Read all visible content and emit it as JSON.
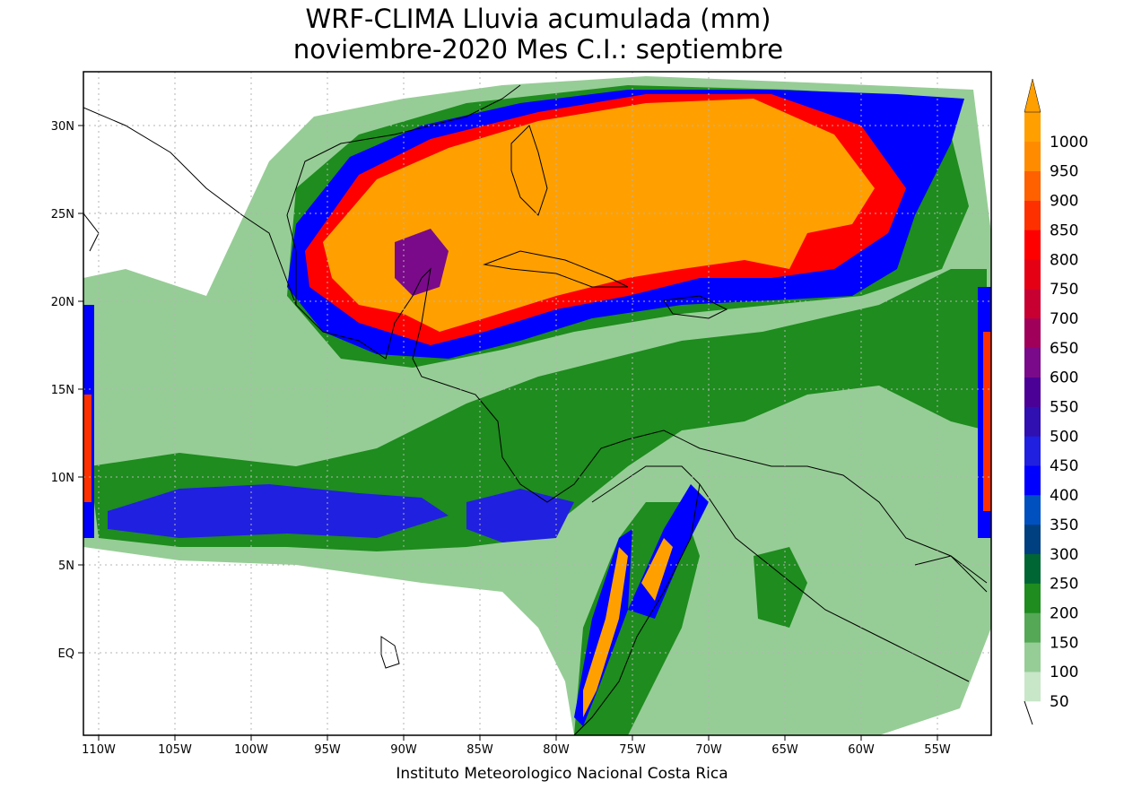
{
  "title": {
    "line1": "WRF-CLIMA Lluvia acumulada (mm)",
    "line2": "noviembre-2020 Mes C.I.: septiembre"
  },
  "footer": "Instituto Meteorologico Nacional Costa Rica",
  "lon_labels": [
    "110W",
    "105W",
    "100W",
    "95W",
    "90W",
    "85W",
    "80W",
    "75W",
    "70W",
    "65W",
    "60W",
    "55W"
  ],
  "lat_labels": [
    "30N",
    "25N",
    "20N",
    "15N",
    "10N",
    "5N",
    "EQ"
  ],
  "legend": {
    "labels": [
      "50",
      "100",
      "150",
      "200",
      "250",
      "300",
      "350",
      "400",
      "450",
      "500",
      "550",
      "600",
      "650",
      "700",
      "750",
      "800",
      "850",
      "900",
      "950",
      "1000"
    ],
    "colors": [
      "#c8e6c8",
      "#96cd96",
      "#55a855",
      "#1e8c1e",
      "#006633",
      "#004080",
      "#0050c0",
      "#0000ff",
      "#2020e0",
      "#3010b0",
      "#4b0096",
      "#7a0a8a",
      "#a0005a",
      "#c80032",
      "#e60014",
      "#ff0000",
      "#ff3000",
      "#ff6000",
      "#ff8c00",
      "#ffa000"
    ]
  },
  "colors": {
    "heavy": "#ffa000",
    "very_high": "#ff0000",
    "high": "#0000ff",
    "moderate": "#1e8c1e",
    "light": "#96cd96"
  }
}
